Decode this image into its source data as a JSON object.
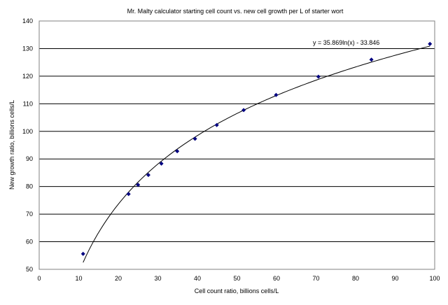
{
  "chart_data": {
    "type": "scatter",
    "title": "Mr. Malty calculator starting cell count vs. new cell growth per L of starter wort",
    "xlabel": "Cell count ratio, billions cells/L",
    "ylabel": "New growth ratio, billions cells/L",
    "xlim": [
      0,
      100
    ],
    "ylim": [
      50,
      140
    ],
    "x_ticks": [
      "0",
      "10",
      "20",
      "30",
      "40",
      "50",
      "60",
      "70",
      "80",
      "90",
      "100"
    ],
    "y_ticks": [
      "50",
      "60",
      "70",
      "80",
      "90",
      "100",
      "110",
      "120",
      "130",
      "140"
    ],
    "grid": "horizontal",
    "points": [
      {
        "x": 11.1,
        "y": 55.6
      },
      {
        "x": 22.6,
        "y": 77.3
      },
      {
        "x": 25.0,
        "y": 80.6
      },
      {
        "x": 27.6,
        "y": 84.2
      },
      {
        "x": 30.9,
        "y": 88.3
      },
      {
        "x": 34.9,
        "y": 92.8
      },
      {
        "x": 39.4,
        "y": 97.3
      },
      {
        "x": 44.9,
        "y": 102.3
      },
      {
        "x": 51.7,
        "y": 107.7
      },
      {
        "x": 59.9,
        "y": 113.2
      },
      {
        "x": 70.6,
        "y": 119.8
      },
      {
        "x": 84.0,
        "y": 126.0
      },
      {
        "x": 98.8,
        "y": 131.7
      }
    ],
    "trendline": {
      "type": "logarithmic",
      "a": 35.869,
      "b": -33.846,
      "x_range": [
        11.1,
        98.8
      ],
      "equation_label": "y = 35.869ln(x)  - 33.846"
    },
    "colors": {
      "marker": "#000080",
      "trendline": "#000000",
      "gridline": "#000000",
      "plot_border": "#808080"
    }
  }
}
